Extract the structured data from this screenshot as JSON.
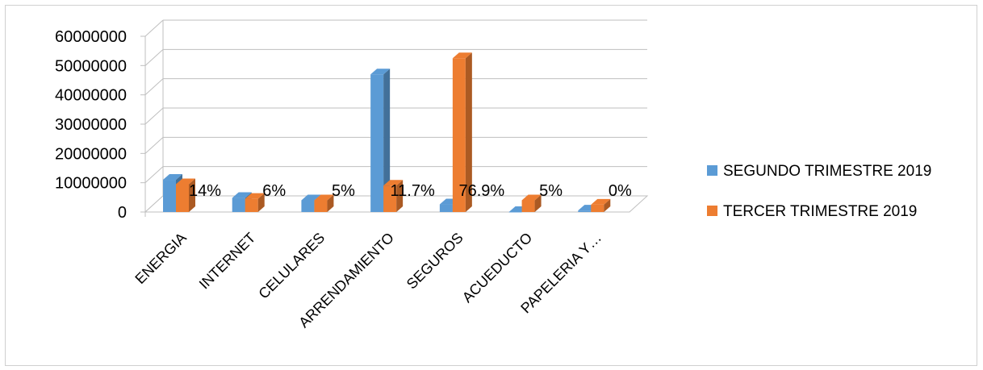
{
  "chart_data": {
    "type": "bar",
    "categories": [
      "ENERGIA",
      "INTERNET",
      "CELULARES",
      "ARRENDAMIENTO",
      "SEGUROS",
      "ACUEDUCTO",
      "PAPELERIA Y…"
    ],
    "series": [
      {
        "name": "SEGUNDO TRIMESTRE 2019",
        "values": [
          11000000,
          4800000,
          4000000,
          47000000,
          2600000,
          0,
          500000
        ],
        "color": "#5b9bd5"
      },
      {
        "name": "TERCER TRIMESTRE 2019",
        "values": [
          9500000,
          4500000,
          4000000,
          9000000,
          52500000,
          4000000,
          2500000
        ],
        "color": "#ed7d31"
      }
    ],
    "data_labels": [
      "14%",
      "6%",
      "5%",
      "11.7%",
      "76.9%",
      "5%",
      "0%"
    ],
    "ylim": [
      0,
      60000000
    ],
    "yticks": [
      "0",
      "10000000",
      "20000000",
      "30000000",
      "40000000",
      "50000000",
      "60000000"
    ],
    "title": "",
    "xlabel": "",
    "ylabel": "",
    "grid": true,
    "legend_position": "right",
    "style": "3d-clustered-column"
  }
}
